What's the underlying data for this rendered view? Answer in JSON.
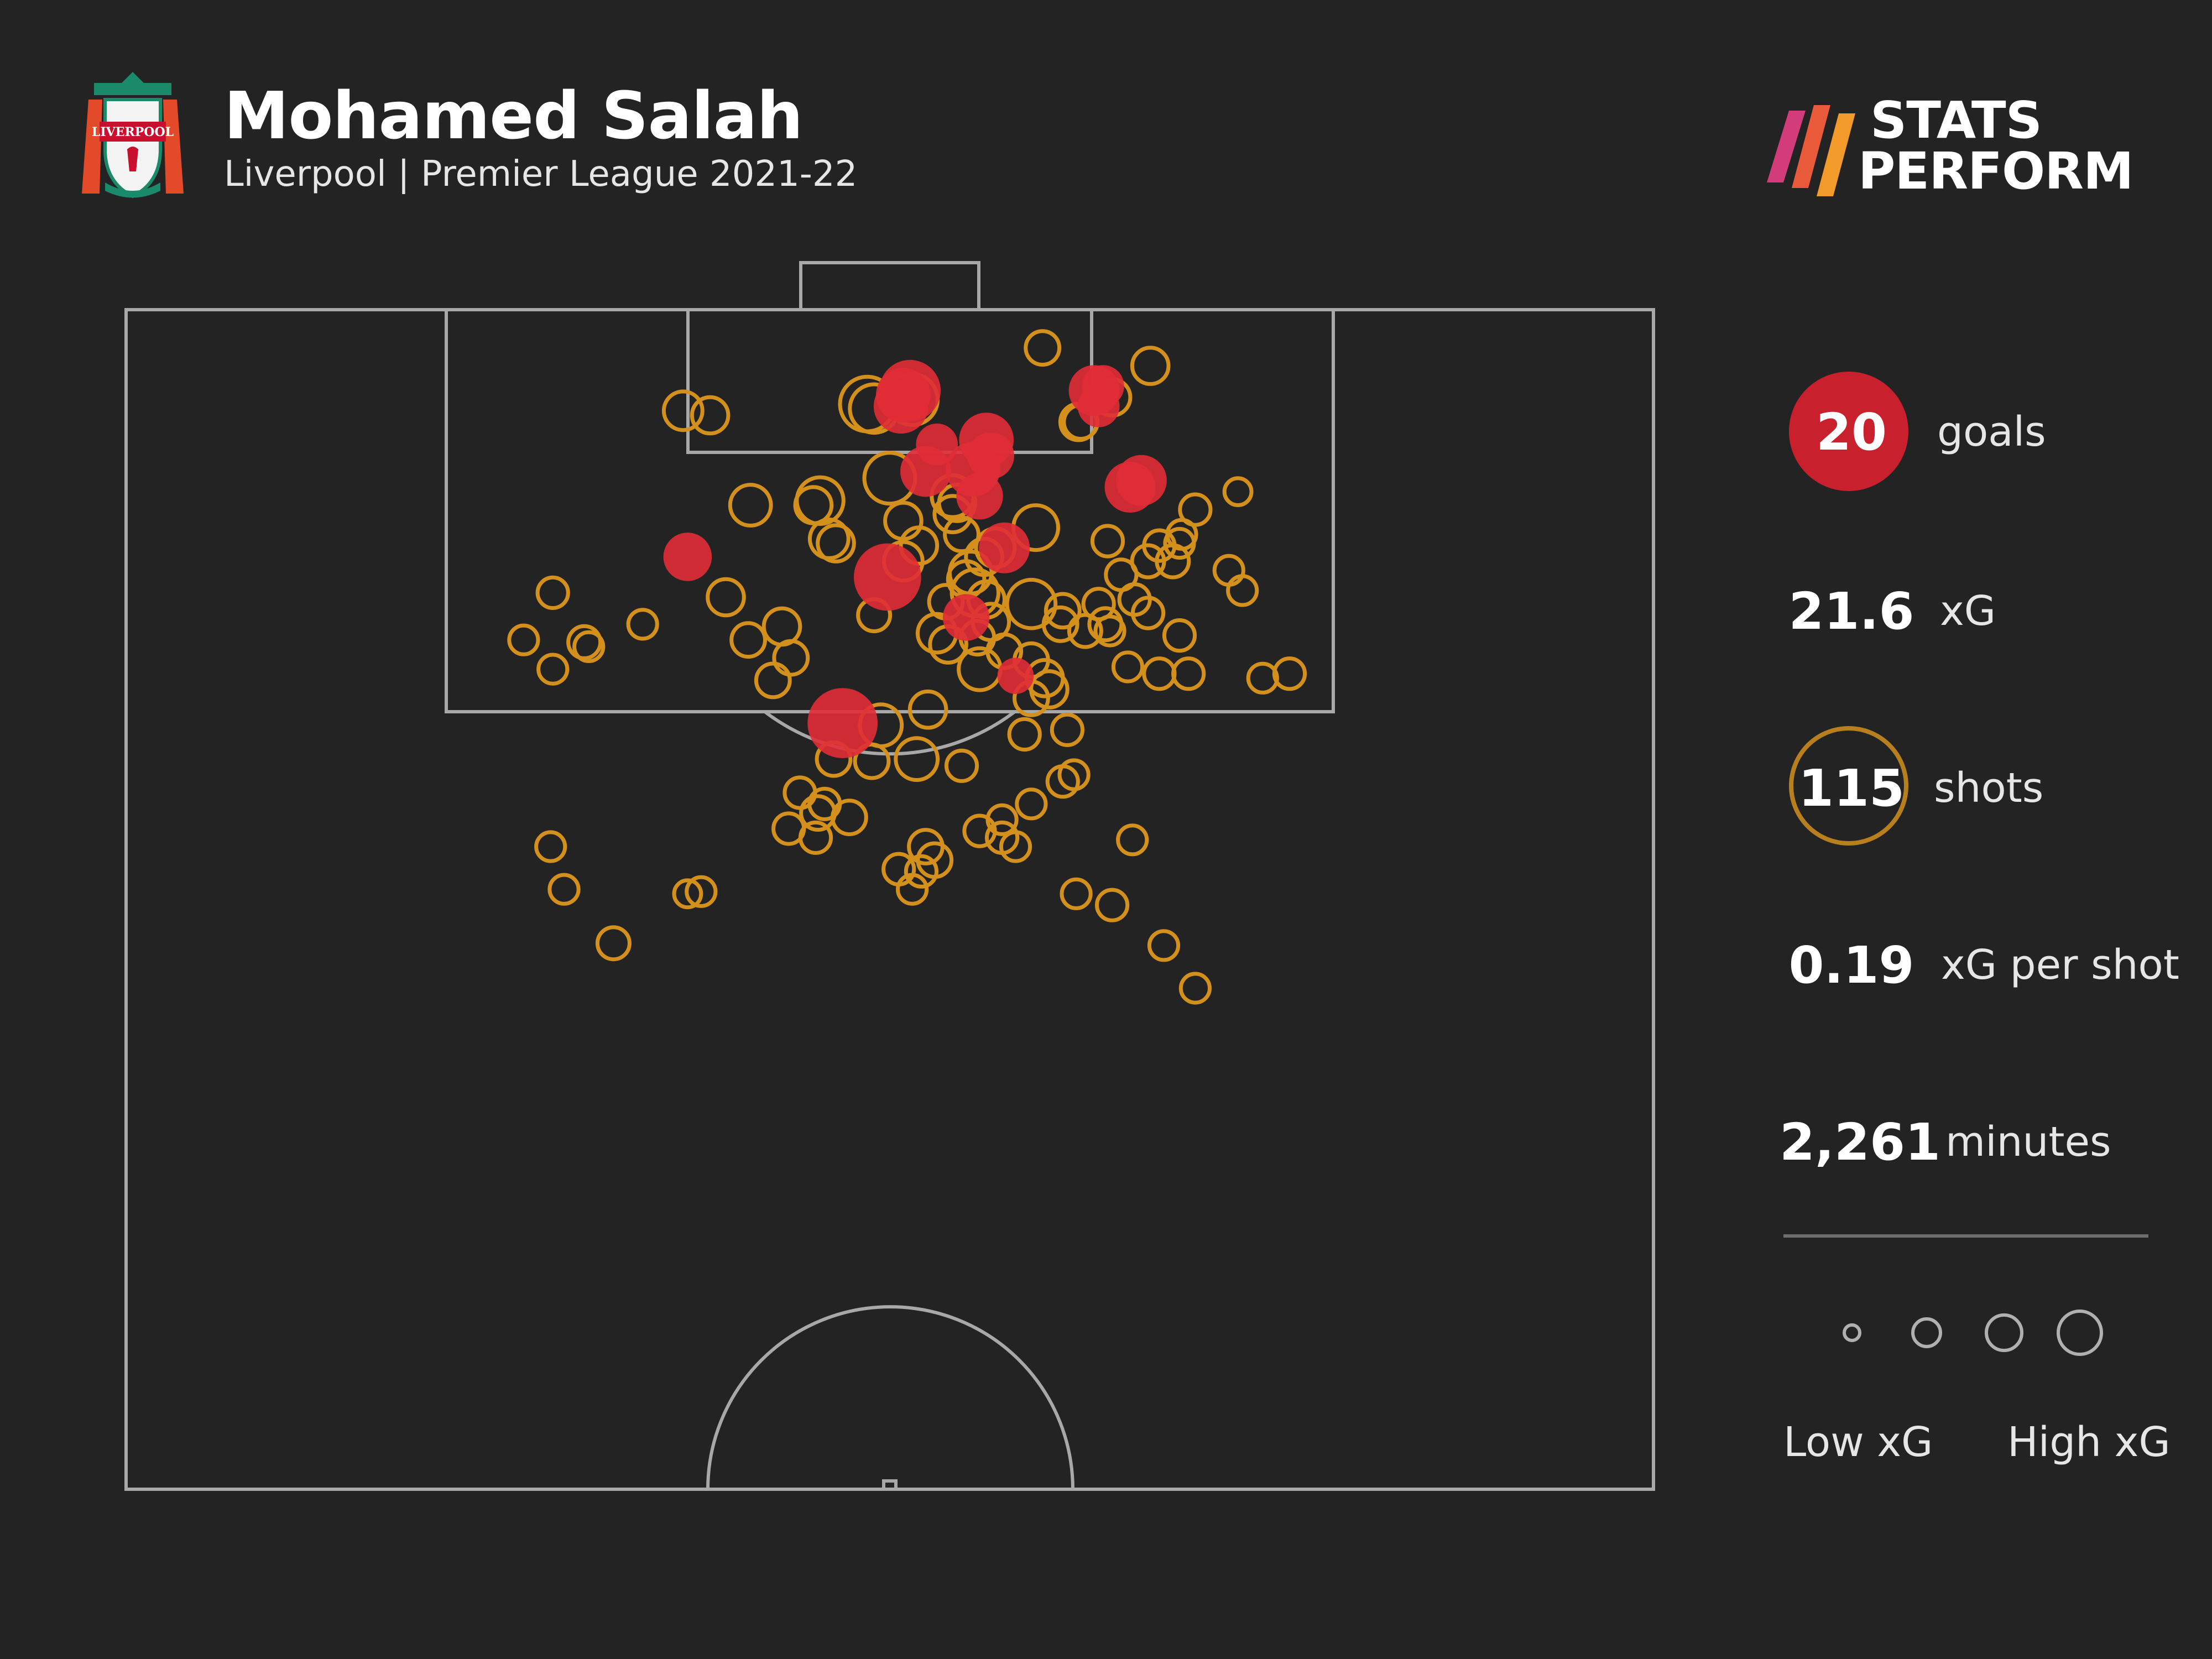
{
  "header": {
    "player_name": "Mohamed Salah",
    "subtitle": "Liverpool | Premier League 2021-22",
    "crest_icon": "liverpool-crest-icon",
    "crest_text": "LIVERPOOL"
  },
  "brand": {
    "line1": "STATS",
    "line2": "PERFORM",
    "logo_icon": "stats-perform-stripes-icon"
  },
  "colors": {
    "background": "#232323",
    "goal": "#e12c36",
    "shot": "#d4901c",
    "pitch_lines": "#a8a8a8",
    "legend": "#b0b0b0"
  },
  "stats": [
    {
      "value": "20",
      "label": "goals"
    },
    {
      "value": "21.6",
      "label": "xG"
    },
    {
      "value": "115",
      "label": "shots"
    },
    {
      "value": "0.19",
      "label": "xG per shot"
    },
    {
      "value": "2,261",
      "label": "minutes"
    }
  ],
  "legend": {
    "low_label": "Low xG",
    "high_label": "High xG",
    "xg_steps": [
      0.05,
      0.2,
      0.35,
      0.55
    ]
  },
  "chart_data": {
    "type": "scatter",
    "title": "",
    "xlabel": "",
    "ylabel": "",
    "description_units": "x = metres from left touchline (0-68), y = metres from goal line (0-52.5), xg = expected goals",
    "xlim": [
      0,
      68
    ],
    "ylim": [
      0,
      52.5
    ],
    "series": [
      {
        "name": "goals",
        "points": [
          {
            "x": 34.9,
            "y": 3.6,
            "xg": 0.4
          },
          {
            "x": 34.5,
            "y": 4.3,
            "xg": 0.3
          },
          {
            "x": 43.1,
            "y": 3.6,
            "xg": 0.25
          },
          {
            "x": 43.3,
            "y": 4.3,
            "xg": 0.15
          },
          {
            "x": 38.3,
            "y": 5.8,
            "xg": 0.3
          },
          {
            "x": 37.7,
            "y": 7.1,
            "xg": 0.3
          },
          {
            "x": 35.6,
            "y": 7.2,
            "xg": 0.25
          },
          {
            "x": 38.0,
            "y": 8.3,
            "xg": 0.2
          },
          {
            "x": 45.2,
            "y": 7.6,
            "xg": 0.25
          },
          {
            "x": 44.7,
            "y": 7.9,
            "xg": 0.25
          },
          {
            "x": 39.1,
            "y": 10.6,
            "xg": 0.25
          },
          {
            "x": 25.0,
            "y": 11.0,
            "xg": 0.22
          },
          {
            "x": 33.9,
            "y": 11.9,
            "xg": 0.5
          },
          {
            "x": 37.4,
            "y": 13.7,
            "xg": 0.2
          },
          {
            "x": 39.6,
            "y": 16.3,
            "xg": 0.1
          },
          {
            "x": 31.9,
            "y": 18.4,
            "xg": 0.55
          },
          {
            "x": 34.6,
            "y": 3.8,
            "xg": 0.3
          },
          {
            "x": 38.5,
            "y": 6.5,
            "xg": 0.2
          },
          {
            "x": 43.5,
            "y": 3.4,
            "xg": 0.15
          },
          {
            "x": 36.1,
            "y": 6.0,
            "xg": 0.15
          }
        ]
      },
      {
        "name": "shots",
        "points": [
          {
            "x": 40.8,
            "y": 1.7,
            "xg": 0.08
          },
          {
            "x": 45.6,
            "y": 2.5,
            "xg": 0.1
          },
          {
            "x": 24.8,
            "y": 4.5,
            "xg": 0.12
          },
          {
            "x": 33.0,
            "y": 4.2,
            "xg": 0.3
          },
          {
            "x": 33.3,
            "y": 4.4,
            "xg": 0.22
          },
          {
            "x": 35.0,
            "y": 4.0,
            "xg": 0.25
          },
          {
            "x": 43.9,
            "y": 3.9,
            "xg": 0.1
          },
          {
            "x": 42.4,
            "y": 5.0,
            "xg": 0.1
          },
          {
            "x": 34.0,
            "y": 7.5,
            "xg": 0.25
          },
          {
            "x": 30.9,
            "y": 8.5,
            "xg": 0.2
          },
          {
            "x": 36.8,
            "y": 8.3,
            "xg": 0.15
          },
          {
            "x": 37.0,
            "y": 8.6,
            "xg": 0.1
          },
          {
            "x": 34.6,
            "y": 9.4,
            "xg": 0.1
          },
          {
            "x": 31.3,
            "y": 10.2,
            "xg": 0.12
          },
          {
            "x": 31.6,
            "y": 10.4,
            "xg": 0.1
          },
          {
            "x": 35.3,
            "y": 10.5,
            "xg": 0.1
          },
          {
            "x": 38.7,
            "y": 10.6,
            "xg": 0.12
          },
          {
            "x": 40.5,
            "y": 9.7,
            "xg": 0.18
          },
          {
            "x": 37.6,
            "y": 11.7,
            "xg": 0.15
          },
          {
            "x": 37.8,
            "y": 12.6,
            "xg": 0.2
          },
          {
            "x": 37.4,
            "y": 12.0,
            "xg": 0.1
          },
          {
            "x": 38.3,
            "y": 12.9,
            "xg": 0.1
          },
          {
            "x": 40.3,
            "y": 13.1,
            "xg": 0.22
          },
          {
            "x": 38.5,
            "y": 13.9,
            "xg": 0.1
          },
          {
            "x": 37.9,
            "y": 14.6,
            "xg": 0.08
          },
          {
            "x": 41.6,
            "y": 14.0,
            "xg": 0.08
          },
          {
            "x": 41.7,
            "y": 13.4,
            "xg": 0.08
          },
          {
            "x": 36.1,
            "y": 14.4,
            "xg": 0.12
          },
          {
            "x": 40.3,
            "y": 15.6,
            "xg": 0.08
          },
          {
            "x": 38.0,
            "y": 16.0,
            "xg": 0.15
          },
          {
            "x": 40.9,
            "y": 16.4,
            "xg": 0.1
          },
          {
            "x": 41.1,
            "y": 16.9,
            "xg": 0.1
          },
          {
            "x": 40.3,
            "y": 17.3,
            "xg": 0.08
          },
          {
            "x": 29.2,
            "y": 14.1,
            "xg": 0.1
          },
          {
            "x": 29.6,
            "y": 15.5,
            "xg": 0.08
          },
          {
            "x": 28.8,
            "y": 16.5,
            "xg": 0.08
          },
          {
            "x": 30.6,
            "y": 8.7,
            "xg": 0.1
          },
          {
            "x": 34.6,
            "y": 11.2,
            "xg": 0.12
          },
          {
            "x": 33.6,
            "y": 18.5,
            "xg": 0.15
          },
          {
            "x": 33.2,
            "y": 20.1,
            "xg": 0.08
          },
          {
            "x": 35.2,
            "y": 20.0,
            "xg": 0.15
          },
          {
            "x": 37.2,
            "y": 20.3,
            "xg": 0.06
          },
          {
            "x": 30.8,
            "y": 22.4,
            "xg": 0.08
          },
          {
            "x": 32.2,
            "y": 22.6,
            "xg": 0.08
          },
          {
            "x": 29.5,
            "y": 23.1,
            "xg": 0.06
          },
          {
            "x": 30.7,
            "y": 23.5,
            "xg": 0.06
          },
          {
            "x": 35.6,
            "y": 23.9,
            "xg": 0.08
          },
          {
            "x": 36.0,
            "y": 24.5,
            "xg": 0.08
          },
          {
            "x": 35.4,
            "y": 25.0,
            "xg": 0.06
          },
          {
            "x": 34.4,
            "y": 24.9,
            "xg": 0.06
          },
          {
            "x": 35.0,
            "y": 25.8,
            "xg": 0.05
          },
          {
            "x": 38.0,
            "y": 23.2,
            "xg": 0.06
          },
          {
            "x": 39.0,
            "y": 23.5,
            "xg": 0.06
          },
          {
            "x": 39.6,
            "y": 23.9,
            "xg": 0.05
          },
          {
            "x": 40.3,
            "y": 22.0,
            "xg": 0.05
          },
          {
            "x": 41.7,
            "y": 21.0,
            "xg": 0.06
          },
          {
            "x": 40.0,
            "y": 18.9,
            "xg": 0.06
          },
          {
            "x": 42.3,
            "y": 26.0,
            "xg": 0.05
          },
          {
            "x": 43.9,
            "y": 26.5,
            "xg": 0.06
          },
          {
            "x": 44.8,
            "y": 23.6,
            "xg": 0.05
          },
          {
            "x": 46.2,
            "y": 28.3,
            "xg": 0.05
          },
          {
            "x": 47.6,
            "y": 30.2,
            "xg": 0.05
          },
          {
            "x": 43.7,
            "y": 10.3,
            "xg": 0.06
          },
          {
            "x": 44.3,
            "y": 11.8,
            "xg": 0.06
          },
          {
            "x": 45.5,
            "y": 11.2,
            "xg": 0.07
          },
          {
            "x": 46.0,
            "y": 10.5,
            "xg": 0.06
          },
          {
            "x": 46.6,
            "y": 11.2,
            "xg": 0.07
          },
          {
            "x": 46.9,
            "y": 10.4,
            "xg": 0.05
          },
          {
            "x": 44.9,
            "y": 12.9,
            "xg": 0.06
          },
          {
            "x": 43.3,
            "y": 13.1,
            "xg": 0.06
          },
          {
            "x": 43.6,
            "y": 14.0,
            "xg": 0.07
          },
          {
            "x": 42.7,
            "y": 14.3,
            "xg": 0.07
          },
          {
            "x": 45.5,
            "y": 13.5,
            "xg": 0.06
          },
          {
            "x": 46.9,
            "y": 14.5,
            "xg": 0.06
          },
          {
            "x": 44.6,
            "y": 15.9,
            "xg": 0.05
          },
          {
            "x": 47.6,
            "y": 8.9,
            "xg": 0.06
          },
          {
            "x": 47.0,
            "y": 10.0,
            "xg": 0.05
          },
          {
            "x": 49.5,
            "y": 8.1,
            "xg": 0.04
          },
          {
            "x": 49.1,
            "y": 11.6,
            "xg": 0.05
          },
          {
            "x": 49.7,
            "y": 12.5,
            "xg": 0.05
          },
          {
            "x": 46.0,
            "y": 16.2,
            "xg": 0.06
          },
          {
            "x": 47.3,
            "y": 16.2,
            "xg": 0.06
          },
          {
            "x": 50.6,
            "y": 16.4,
            "xg": 0.05
          },
          {
            "x": 51.8,
            "y": 16.2,
            "xg": 0.06
          },
          {
            "x": 19.0,
            "y": 12.6,
            "xg": 0.06
          },
          {
            "x": 19.0,
            "y": 16.0,
            "xg": 0.05
          },
          {
            "x": 20.4,
            "y": 14.8,
            "xg": 0.07
          },
          {
            "x": 20.6,
            "y": 15.0,
            "xg": 0.05
          },
          {
            "x": 17.7,
            "y": 14.7,
            "xg": 0.05
          },
          {
            "x": 23.0,
            "y": 14.0,
            "xg": 0.05
          },
          {
            "x": 27.7,
            "y": 14.7,
            "xg": 0.08
          },
          {
            "x": 27.8,
            "y": 8.7,
            "xg": 0.14
          },
          {
            "x": 26.0,
            "y": 4.7,
            "xg": 0.1
          },
          {
            "x": 42.5,
            "y": 5.0,
            "xg": 0.08
          },
          {
            "x": 36.8,
            "y": 9.1,
            "xg": 0.1
          },
          {
            "x": 31.5,
            "y": 20.0,
            "xg": 0.08
          },
          {
            "x": 18.9,
            "y": 23.9,
            "xg": 0.05
          },
          {
            "x": 19.5,
            "y": 25.8,
            "xg": 0.05
          },
          {
            "x": 25.6,
            "y": 25.9,
            "xg": 0.05
          },
          {
            "x": 21.7,
            "y": 28.2,
            "xg": 0.07
          },
          {
            "x": 25.0,
            "y": 26.0,
            "xg": 0.04
          },
          {
            "x": 30.0,
            "y": 21.5,
            "xg": 0.06
          },
          {
            "x": 31.1,
            "y": 22.0,
            "xg": 0.06
          },
          {
            "x": 36.6,
            "y": 14.9,
            "xg": 0.1
          },
          {
            "x": 39.1,
            "y": 15.2,
            "xg": 0.08
          },
          {
            "x": 38.2,
            "y": 11.0,
            "xg": 0.1
          },
          {
            "x": 37.2,
            "y": 10.0,
            "xg": 0.08
          },
          {
            "x": 35.7,
            "y": 17.8,
            "xg": 0.1
          },
          {
            "x": 41.9,
            "y": 18.7,
            "xg": 0.06
          },
          {
            "x": 33.3,
            "y": 13.6,
            "xg": 0.07
          },
          {
            "x": 36.5,
            "y": 13.0,
            "xg": 0.08
          },
          {
            "x": 43.8,
            "y": 14.3,
            "xg": 0.05
          },
          {
            "x": 42.2,
            "y": 20.7,
            "xg": 0.05
          },
          {
            "x": 39.0,
            "y": 22.7,
            "xg": 0.05
          },
          {
            "x": 26.7,
            "y": 12.8,
            "xg": 0.1
          }
        ]
      }
    ],
    "legend_labels": [
      "goals",
      "shots"
    ],
    "grid": false
  }
}
